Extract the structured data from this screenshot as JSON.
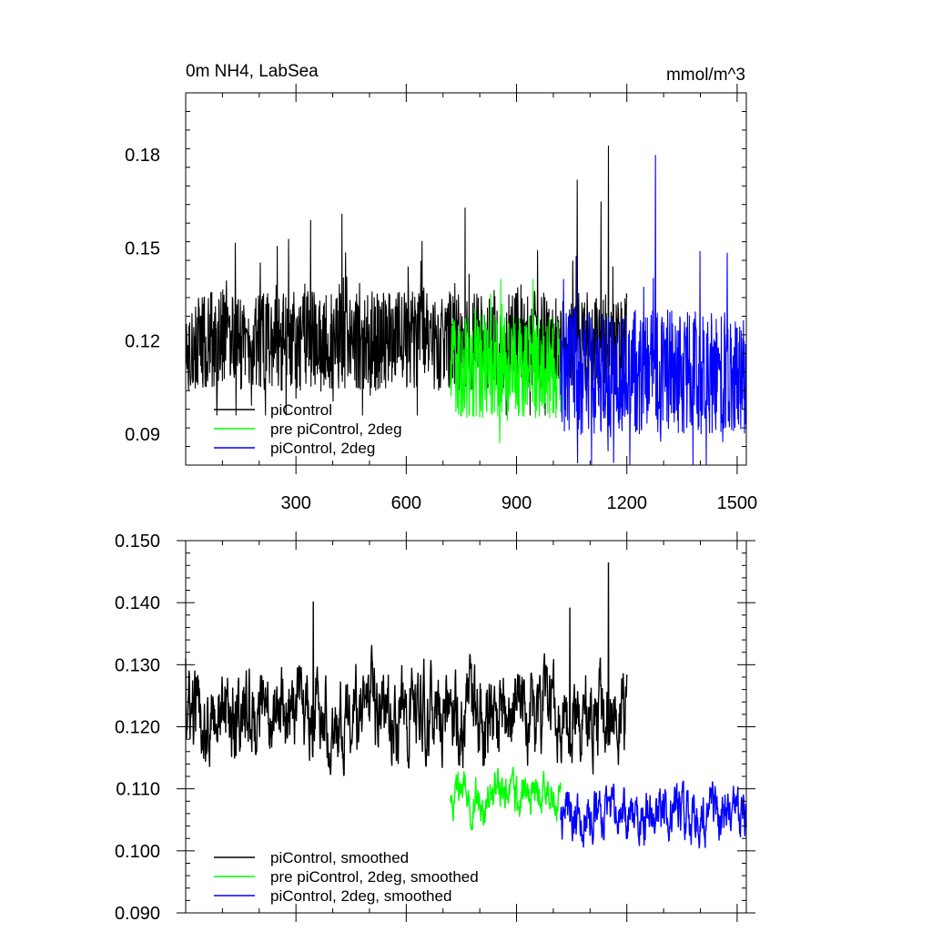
{
  "chart_data": [
    {
      "type": "line",
      "title": "0m NH4, LabSea",
      "units": "mmol/m^3",
      "xlim": [
        0,
        1525
      ],
      "ylim": [
        0.08,
        0.2
      ],
      "xticks": [
        300,
        600,
        900,
        1200,
        1500
      ],
      "xtick_labels": [
        "300",
        "600",
        "900",
        "1200",
        "1500"
      ],
      "yticks": [
        0.09,
        0.12,
        0.15,
        0.18
      ],
      "ytick_labels": [
        "0.09",
        "0.12",
        "0.15",
        "0.18"
      ],
      "legend": {
        "placement": "lower-left"
      },
      "series": [
        {
          "name": "piControl",
          "color": "#000000",
          "x_range": [
            0,
            1200
          ],
          "y_approx_range": [
            0.096,
            0.183
          ],
          "y_mean_approx": 0.12,
          "peaks": [
            {
              "x": 1150,
              "y": 0.183
            },
            {
              "x": 1065,
              "y": 0.172
            },
            {
              "x": 1130,
              "y": 0.165
            },
            {
              "x": 760,
              "y": 0.163
            },
            {
              "x": 425,
              "y": 0.161
            },
            {
              "x": 340,
              "y": 0.159
            }
          ]
        },
        {
          "name": "pre piControl, 2deg",
          "color": "#00ff00",
          "x_range": [
            720,
            1020
          ],
          "y_approx_range": [
            0.087,
            0.14
          ],
          "y_mean_approx": 0.112
        },
        {
          "name": "piControl, 2deg",
          "color": "#0000ff",
          "x_range": [
            1020,
            1525
          ],
          "y_approx_range": [
            0.08,
            0.18
          ],
          "y_mean_approx": 0.11,
          "peaks": [
            {
              "x": 1278,
              "y": 0.18
            }
          ]
        }
      ]
    },
    {
      "type": "line",
      "title": "",
      "xlim": [
        0,
        1525
      ],
      "ylim": [
        0.09,
        0.15
      ],
      "xticks": [
        300,
        600,
        900,
        1200,
        1500
      ],
      "yticks": [
        0.09,
        0.1,
        0.11,
        0.12,
        0.13,
        0.14,
        0.15
      ],
      "ytick_labels": [
        "0.090",
        "0.100",
        "0.110",
        "0.120",
        "0.130",
        "0.140",
        "0.150"
      ],
      "legend": {
        "placement": "lower-left"
      },
      "series": [
        {
          "name": "piControl, smoothed",
          "color": "#000000",
          "x_range": [
            0,
            1200
          ],
          "y_approx_range": [
            0.1025,
            0.1465
          ],
          "y_mean_approx": 0.122,
          "peaks": [
            {
              "x": 1150,
              "y": 0.1465
            },
            {
              "x": 347,
              "y": 0.1402
            },
            {
              "x": 1045,
              "y": 0.1392
            },
            {
              "x": 0,
              "y": 0.131
            }
          ]
        },
        {
          "name": "pre piControl, 2deg, smoothed",
          "color": "#00ff00",
          "x_range": [
            720,
            1020
          ],
          "y_approx_range": [
            0.0995,
            0.1255
          ],
          "y_mean_approx": 0.109
        },
        {
          "name": "piControl, 2deg, smoothed",
          "color": "#0000ff",
          "x_range": [
            1020,
            1525
          ],
          "y_approx_range": [
            0.094,
            0.117
          ],
          "y_mean_approx": 0.106
        }
      ]
    }
  ]
}
